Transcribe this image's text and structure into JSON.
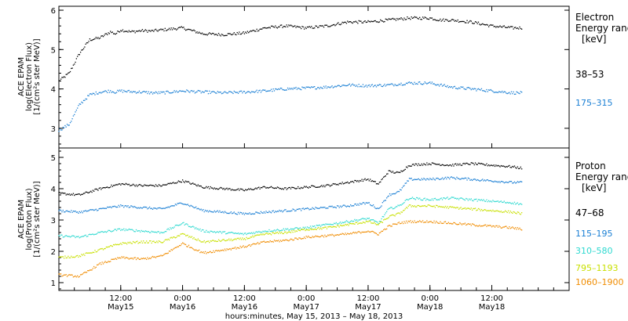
{
  "chart_data": [
    {
      "type": "scatter",
      "panel": "electron",
      "ylabel_lines": [
        "ACE EPAM",
        "log(Electron Flux)",
        "[1/(cm²s ster MeV)]"
      ],
      "ylim": [
        2.5,
        6.1
      ],
      "yticks": [
        "3",
        "4",
        "5",
        "6"
      ],
      "legend": {
        "title_lines": [
          "Electron",
          "Energy ranges",
          "[keV]"
        ],
        "entries": [
          {
            "label": "38–53",
            "color": "#000000"
          },
          {
            "label": "175–315",
            "color": "#1a7fd4"
          }
        ]
      },
      "series": [
        {
          "name": "38–53",
          "color": "#000000",
          "x": [
            0,
            2,
            4,
            6,
            8,
            10,
            11,
            12,
            14,
            16,
            18,
            20,
            24,
            28,
            32,
            36,
            40,
            44,
            48,
            52,
            56,
            60,
            64,
            68,
            72,
            74,
            76,
            80,
            84,
            88,
            90
          ],
          "y": [
            4.2,
            4.4,
            4.9,
            5.25,
            5.3,
            5.45,
            5.4,
            5.5,
            5.45,
            5.48,
            5.47,
            5.5,
            5.55,
            5.4,
            5.38,
            5.42,
            5.55,
            5.6,
            5.55,
            5.6,
            5.7,
            5.7,
            5.75,
            5.8,
            5.8,
            5.75,
            5.75,
            5.7,
            5.6,
            5.55,
            5.55
          ]
        },
        {
          "name": "175–315",
          "color": "#1a7fd4",
          "x": [
            0,
            2,
            4,
            6,
            8,
            10,
            11,
            12,
            14,
            16,
            18,
            20,
            24,
            28,
            32,
            36,
            40,
            44,
            48,
            52,
            56,
            60,
            64,
            68,
            72,
            74,
            76,
            80,
            84,
            88,
            90
          ],
          "y": [
            2.95,
            3.1,
            3.6,
            3.85,
            3.92,
            3.95,
            3.92,
            3.95,
            3.93,
            3.92,
            3.9,
            3.9,
            3.95,
            3.92,
            3.9,
            3.92,
            3.95,
            4.0,
            4.02,
            4.05,
            4.1,
            4.08,
            4.1,
            4.15,
            4.15,
            4.1,
            4.05,
            4.0,
            3.95,
            3.9,
            3.9
          ]
        }
      ]
    },
    {
      "type": "scatter",
      "panel": "proton",
      "ylabel_lines": [
        "ACE EPAM",
        "log(Proton Flux)",
        "[1/(cm²s ster MeV)]"
      ],
      "ylim": [
        0.75,
        5.3
      ],
      "yticks": [
        "1",
        "2",
        "3",
        "4",
        "5"
      ],
      "legend": {
        "title_lines": [
          "Proton",
          "Energy ranges",
          "[keV]"
        ],
        "entries": [
          {
            "label": "47–68",
            "color": "#000000"
          },
          {
            "label": "115–195",
            "color": "#1a7fd4"
          },
          {
            "label": "310–580",
            "color": "#2ed9d0"
          },
          {
            "label": "795–1193",
            "color": "#c8e000"
          },
          {
            "label": "1060–1900",
            "color": "#f08c00"
          }
        ]
      },
      "series": [
        {
          "name": "47–68",
          "color": "#000000",
          "x": [
            0,
            4,
            8,
            12,
            16,
            20,
            24,
            28,
            32,
            36,
            40,
            44,
            48,
            52,
            56,
            60,
            62,
            64,
            66,
            68,
            72,
            76,
            80,
            84,
            88,
            90
          ],
          "y": [
            3.85,
            3.8,
            4.0,
            4.15,
            4.1,
            4.1,
            4.25,
            4.05,
            4.0,
            3.95,
            4.05,
            4.0,
            4.05,
            4.1,
            4.2,
            4.3,
            4.15,
            4.55,
            4.5,
            4.75,
            4.8,
            4.75,
            4.8,
            4.75,
            4.7,
            4.65
          ]
        },
        {
          "name": "115–195",
          "color": "#1a7fd4",
          "x": [
            0,
            4,
            8,
            12,
            16,
            20,
            24,
            28,
            32,
            36,
            40,
            44,
            48,
            52,
            56,
            60,
            62,
            64,
            66,
            68,
            72,
            76,
            80,
            84,
            88,
            90
          ],
          "y": [
            3.3,
            3.25,
            3.35,
            3.45,
            3.4,
            3.35,
            3.55,
            3.3,
            3.25,
            3.2,
            3.25,
            3.3,
            3.35,
            3.4,
            3.45,
            3.55,
            3.35,
            3.8,
            3.9,
            4.3,
            4.3,
            4.35,
            4.3,
            4.25,
            4.2,
            4.2
          ]
        },
        {
          "name": "310–580",
          "color": "#2ed9d0",
          "x": [
            0,
            4,
            8,
            12,
            16,
            20,
            24,
            28,
            32,
            36,
            40,
            44,
            48,
            52,
            56,
            60,
            62,
            64,
            66,
            68,
            72,
            76,
            80,
            84,
            88,
            90
          ],
          "y": [
            2.5,
            2.45,
            2.6,
            2.7,
            2.65,
            2.6,
            2.9,
            2.65,
            2.6,
            2.55,
            2.65,
            2.7,
            2.75,
            2.85,
            2.95,
            3.05,
            2.9,
            3.35,
            3.45,
            3.7,
            3.65,
            3.7,
            3.65,
            3.6,
            3.55,
            3.5
          ]
        },
        {
          "name": "795–1193",
          "color": "#c8e000",
          "x": [
            0,
            4,
            8,
            12,
            16,
            20,
            24,
            28,
            32,
            36,
            40,
            44,
            48,
            52,
            56,
            60,
            62,
            64,
            66,
            68,
            72,
            76,
            80,
            84,
            88,
            90
          ],
          "y": [
            1.8,
            1.85,
            2.05,
            2.25,
            2.3,
            2.3,
            2.55,
            2.3,
            2.35,
            2.4,
            2.55,
            2.6,
            2.7,
            2.75,
            2.85,
            2.95,
            2.85,
            3.1,
            3.2,
            3.45,
            3.45,
            3.4,
            3.35,
            3.3,
            3.25,
            3.2
          ]
        },
        {
          "name": "1060–1900",
          "color": "#f08c00",
          "x": [
            0,
            4,
            8,
            12,
            16,
            20,
            24,
            28,
            32,
            36,
            40,
            44,
            48,
            52,
            56,
            60,
            62,
            64,
            66,
            68,
            72,
            76,
            80,
            84,
            88,
            90
          ],
          "y": [
            1.25,
            1.2,
            1.6,
            1.8,
            1.75,
            1.85,
            2.25,
            1.95,
            2.05,
            2.15,
            2.3,
            2.35,
            2.45,
            2.5,
            2.55,
            2.65,
            2.55,
            2.8,
            2.9,
            2.95,
            2.95,
            2.9,
            2.85,
            2.8,
            2.75,
            2.7
          ]
        }
      ]
    }
  ],
  "x_axis": {
    "range_hours": [
      0,
      99
    ],
    "ticks": [
      {
        "h": 12,
        "time": "12:00",
        "date": "May15"
      },
      {
        "h": 24,
        "time": "0:00",
        "date": "May16"
      },
      {
        "h": 36,
        "time": "12:00",
        "date": "May16"
      },
      {
        "h": 48,
        "time": "0:00",
        "date": "May17"
      },
      {
        "h": 60,
        "time": "12:00",
        "date": "May17"
      },
      {
        "h": 72,
        "time": "0:00",
        "date": "May18"
      },
      {
        "h": 84,
        "time": "12:00",
        "date": "May18"
      }
    ],
    "title": "hours:minutes, May 15, 2013 – May 18, 2013"
  }
}
